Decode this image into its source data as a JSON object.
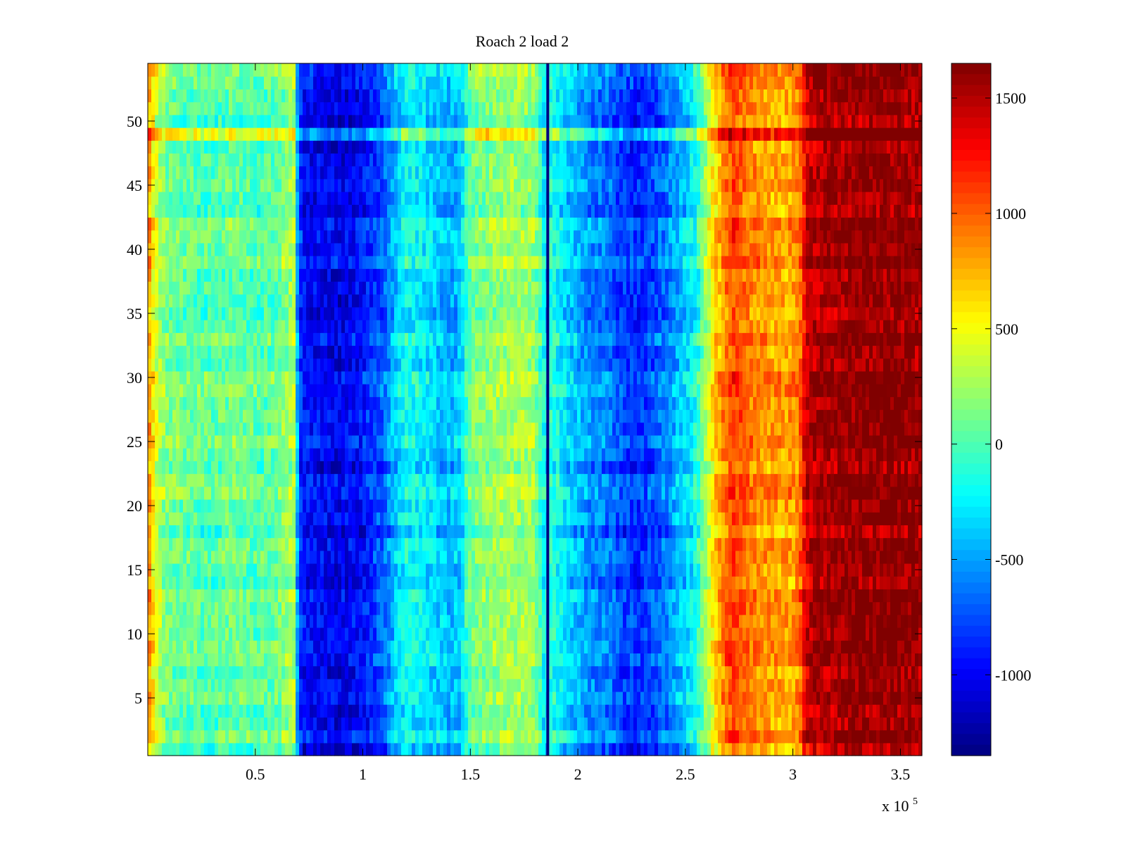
{
  "chart_data": {
    "type": "heatmap",
    "title": "Roach 2 load 2",
    "xlabel": "",
    "ylabel": "",
    "x_multiplier_label": "x 10",
    "x_multiplier_exponent": "5",
    "xlim": [
      0,
      3.6
    ],
    "ylim": [
      0.5,
      54.5
    ],
    "x_ticks": [
      0.5,
      1,
      1.5,
      2,
      2.5,
      3,
      3.5
    ],
    "x_tick_labels": [
      "0.5",
      "1",
      "1.5",
      "2",
      "2.5",
      "3",
      "3.5"
    ],
    "y_ticks": [
      5,
      10,
      15,
      20,
      25,
      30,
      35,
      40,
      45,
      50
    ],
    "y_tick_labels": [
      "5",
      "10",
      "15",
      "20",
      "25",
      "30",
      "35",
      "40",
      "45",
      "50"
    ],
    "rows": 54,
    "colorbar": {
      "colormap": "jet",
      "clim": [
        -1350,
        1650
      ],
      "ticks": [
        1500,
        1000,
        500,
        0,
        -500,
        -1000
      ],
      "tick_labels": [
        "1500",
        "1000",
        "500",
        "0",
        "-500",
        "-1000"
      ]
    },
    "column_profile": {
      "x": [
        0,
        0.03,
        0.06,
        0.1,
        0.2,
        0.3,
        0.4,
        0.5,
        0.6,
        0.68,
        0.7,
        0.72,
        0.8,
        0.9,
        1.0,
        1.1,
        1.15,
        1.2,
        1.3,
        1.4,
        1.45,
        1.5,
        1.6,
        1.7,
        1.8,
        1.85,
        1.88,
        1.95,
        2.05,
        2.15,
        2.2,
        2.3,
        2.4,
        2.5,
        2.55,
        2.62,
        2.68,
        2.72,
        2.8,
        2.9,
        3.0,
        3.03,
        3.06,
        3.1,
        3.2,
        3.3,
        3.4,
        3.5,
        3.6
      ],
      "values": [
        900,
        500,
        250,
        100,
        50,
        0,
        100,
        0,
        50,
        300,
        -700,
        -950,
        -1000,
        -1050,
        -950,
        -700,
        -400,
        -200,
        -300,
        -450,
        -400,
        100,
        200,
        250,
        200,
        -300,
        -100,
        -350,
        -550,
        -650,
        -800,
        -850,
        -650,
        -350,
        -200,
        500,
        900,
        1100,
        900,
        800,
        800,
        900,
        1400,
        1500,
        1550,
        1600,
        1600,
        1600,
        1550
      ]
    },
    "row_features": {
      "highlight_rows": [
        49
      ],
      "highlight_color_shift": 300,
      "dark_column_x": 1.86,
      "dark_column_value": -1350
    }
  },
  "colors": {
    "background": "#ffffff",
    "axes": "#000000"
  }
}
